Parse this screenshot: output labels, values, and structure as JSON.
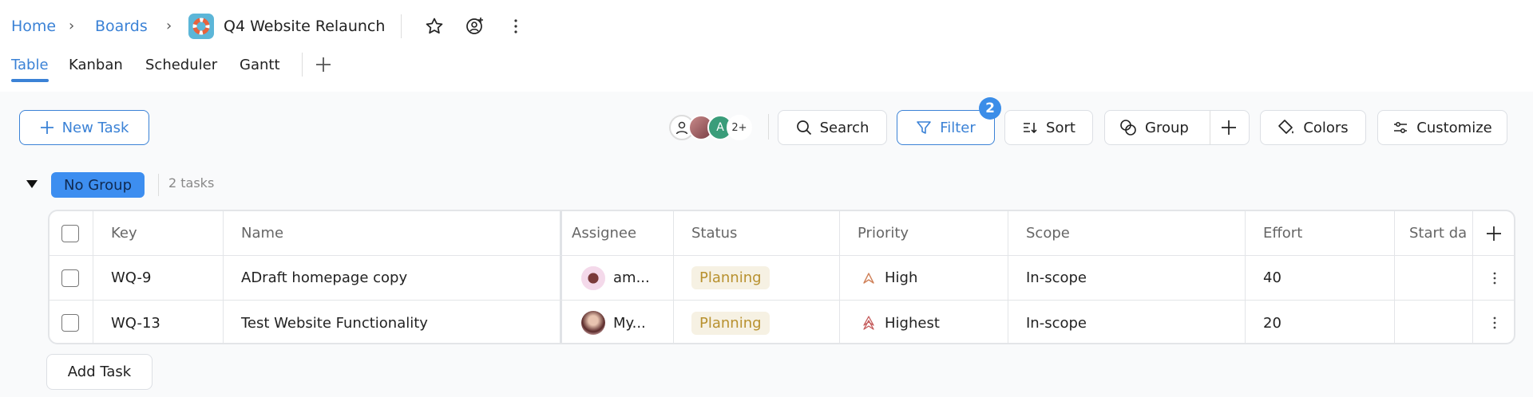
{
  "breadcrumb": {
    "home": "Home",
    "boards": "Boards",
    "title": "Q4 Website Relaunch"
  },
  "tabs": [
    {
      "label": "Table",
      "active": true
    },
    {
      "label": "Kanban"
    },
    {
      "label": "Scheduler"
    },
    {
      "label": "Gantt"
    }
  ],
  "toolbar": {
    "new_task": "New Task",
    "avatars_more": "2+",
    "avatar_letter": "A",
    "search": "Search",
    "filter": "Filter",
    "filter_count": "2",
    "sort": "Sort",
    "group": "Group",
    "colors": "Colors",
    "customize": "Customize"
  },
  "group": {
    "name": "No Group",
    "count": "2 tasks"
  },
  "table": {
    "columns": [
      "Key",
      "Name",
      "Assignee",
      "Status",
      "Priority",
      "Scope",
      "Effort",
      "Start da"
    ],
    "rows": [
      {
        "key": "WQ-9",
        "name": "ADraft homepage copy",
        "assignee": "am...",
        "status": "Planning",
        "priority": "High",
        "scope": "In-scope",
        "effort": "40"
      },
      {
        "key": "WQ-13",
        "name": "Test Website Functionality",
        "assignee": "My...",
        "status": "Planning",
        "priority": "Highest",
        "scope": "In-scope",
        "effort": "20"
      }
    ]
  },
  "add_task": "Add Task",
  "colors": {
    "accent": "#3b82d6",
    "status_planning_bg": "#f6f1e3",
    "status_planning_fg": "#b8912f"
  }
}
